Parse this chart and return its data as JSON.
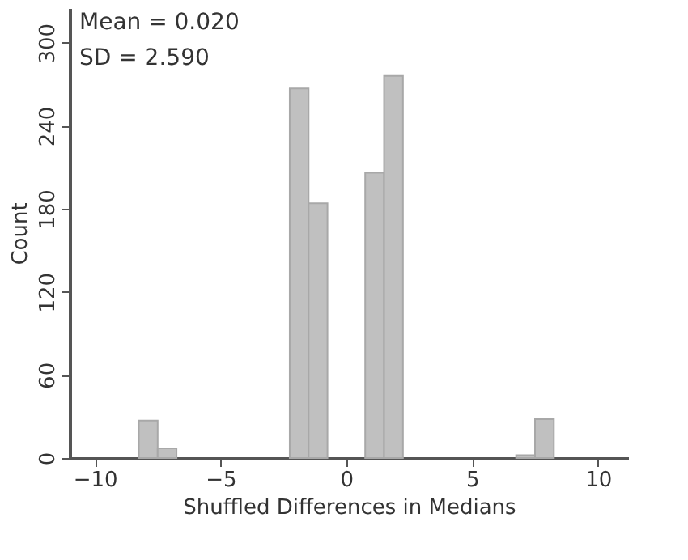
{
  "chart_data": {
    "type": "histogram",
    "bins": [
      -8.25,
      -7.5,
      -6.75,
      -6,
      -5.25,
      -4.5,
      -3.75,
      -3,
      -2.25,
      -1.5,
      -0.75,
      0,
      0.75,
      1.5,
      2.25,
      3,
      3.75,
      4.5,
      5.25,
      6,
      6.75,
      7.5,
      8.25
    ],
    "values": [
      27,
      7,
      0,
      0,
      0,
      0,
      0,
      0,
      267,
      184,
      0,
      0,
      206,
      276,
      0,
      0,
      0,
      0,
      0,
      0,
      2,
      28
    ],
    "color": "#c0c0c0",
    "xlabel": "Shuffled Differences in Medians",
    "ylabel": "Count",
    "xlim": [
      -11,
      11.2
    ],
    "xticks": [
      -10,
      -5,
      0,
      5,
      10
    ],
    "ylim": [
      0,
      325
    ],
    "yticks": [
      0,
      60,
      120,
      180,
      240,
      300
    ],
    "annotations": [
      "Mean = 0.020",
      "SD = 2.590"
    ],
    "grid": false
  }
}
